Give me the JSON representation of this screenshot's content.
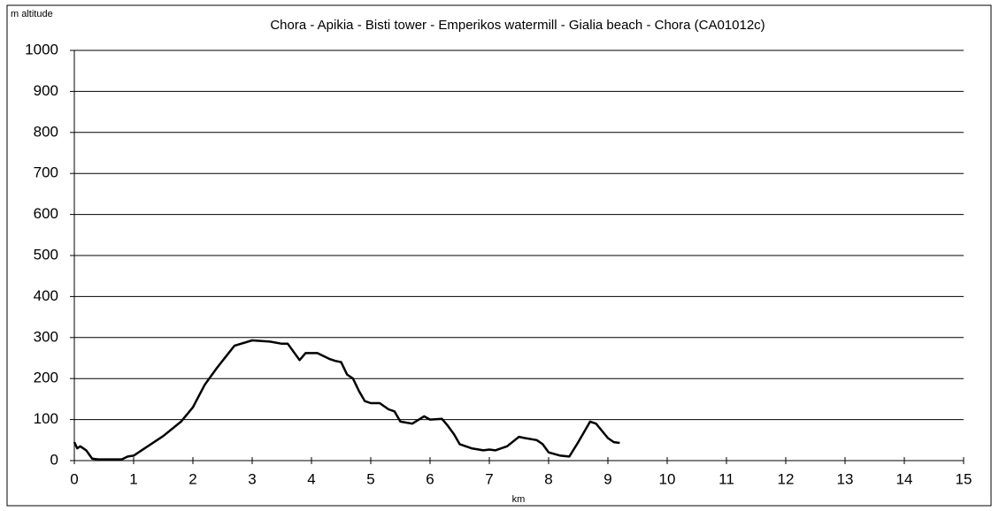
{
  "chart_data": {
    "type": "line",
    "title": "Chora - Apikia - Bisti tower - Emperikos watermill - Gialia beach - Chora (CA01012c)",
    "y_label": "m altitude",
    "x_label": "km",
    "x": [
      0,
      0.05,
      0.1,
      0.2,
      0.3,
      0.4,
      0.6,
      0.8,
      0.9,
      1.0,
      1.5,
      1.8,
      2.0,
      2.2,
      2.4,
      2.7,
      3.0,
      3.3,
      3.5,
      3.6,
      3.8,
      3.9,
      4.1,
      4.3,
      4.4,
      4.5,
      4.6,
      4.7,
      4.8,
      4.9,
      5.0,
      5.15,
      5.3,
      5.4,
      5.5,
      5.7,
      5.9,
      6.0,
      6.2,
      6.3,
      6.4,
      6.5,
      6.7,
      6.9,
      7.0,
      7.1,
      7.3,
      7.5,
      7.6,
      7.8,
      7.9,
      8.0,
      8.2,
      8.35,
      8.5,
      8.7,
      8.8,
      9.0,
      9.1,
      9.2
    ],
    "values": [
      45,
      30,
      35,
      25,
      5,
      3,
      3,
      3,
      10,
      12,
      60,
      95,
      130,
      185,
      225,
      280,
      293,
      290,
      285,
      285,
      245,
      262,
      262,
      248,
      243,
      240,
      210,
      200,
      170,
      145,
      140,
      140,
      125,
      120,
      95,
      90,
      108,
      100,
      102,
      85,
      65,
      40,
      30,
      25,
      27,
      25,
      35,
      58,
      55,
      50,
      40,
      20,
      12,
      10,
      45,
      95,
      90,
      55,
      45,
      43
    ],
    "color": "#000000",
    "xlim": [
      0,
      15
    ],
    "xticks": [
      0,
      1,
      2,
      3,
      4,
      5,
      6,
      7,
      8,
      9,
      10,
      11,
      12,
      13,
      14,
      15
    ],
    "ylim": [
      0,
      1000
    ],
    "yticks": [
      0,
      100,
      200,
      300,
      400,
      500,
      600,
      700,
      800,
      900,
      1000
    ],
    "grid": true
  }
}
